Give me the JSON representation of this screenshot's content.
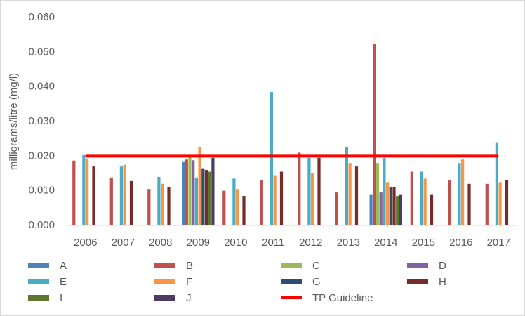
{
  "chart_data": {
    "type": "bar",
    "y_label": "milligrams/litre (mg/l)",
    "categories": [
      "2006",
      "2007",
      "2008",
      "2009",
      "2010",
      "2011",
      "2012",
      "2013",
      "2014",
      "2015",
      "2016",
      "2017"
    ],
    "ylim": [
      0,
      0.06
    ],
    "yticks": [
      {
        "value": 0,
        "label": "0.000"
      },
      {
        "value": 0.01,
        "label": "0.010"
      },
      {
        "value": 0.02,
        "label": "0.020"
      },
      {
        "value": 0.03,
        "label": "0.030"
      },
      {
        "value": 0.04,
        "label": "0.040"
      },
      {
        "value": 0.05,
        "label": "0.050"
      },
      {
        "value": 0.06,
        "label": "0.060"
      }
    ],
    "grid": false,
    "series": [
      {
        "name": "A",
        "color": "#4f81bd",
        "values": [
          null,
          null,
          null,
          0.0185,
          null,
          null,
          null,
          null,
          0.009,
          null,
          null,
          null
        ]
      },
      {
        "name": "B",
        "color": "#c0504d",
        "values": [
          0.0187,
          0.0138,
          0.0105,
          0.019,
          0.01,
          0.013,
          0.021,
          0.0095,
          0.0525,
          0.0155,
          0.013,
          0.012
        ]
      },
      {
        "name": "C",
        "color": "#9bbb59",
        "values": [
          null,
          null,
          null,
          0.0197,
          null,
          null,
          null,
          null,
          0.018,
          null,
          null,
          null
        ]
      },
      {
        "name": "D",
        "color": "#8064a2",
        "values": [
          null,
          null,
          null,
          0.0188,
          null,
          null,
          null,
          null,
          0.0095,
          null,
          null,
          null
        ]
      },
      {
        "name": "E",
        "color": "#4bacc6",
        "values": [
          0.0203,
          0.017,
          0.014,
          0.0138,
          0.0135,
          0.0385,
          0.0195,
          0.0225,
          0.0195,
          0.0155,
          0.018,
          0.024
        ]
      },
      {
        "name": "F",
        "color": "#f79646",
        "values": [
          0.0193,
          0.0175,
          0.012,
          0.0227,
          0.0105,
          0.0145,
          0.015,
          0.018,
          0.0125,
          0.0135,
          0.019,
          0.0125
        ]
      },
      {
        "name": "G",
        "color": "#2c4d75",
        "values": [
          null,
          null,
          null,
          0.0165,
          null,
          null,
          null,
          null,
          0.011,
          null,
          null,
          null
        ]
      },
      {
        "name": "H",
        "color": "#772c2a",
        "values": [
          0.017,
          0.0128,
          0.011,
          0.016,
          0.0085,
          0.0155,
          0.0195,
          0.017,
          0.011,
          0.009,
          0.012,
          0.013
        ]
      },
      {
        "name": "I",
        "color": "#5f7530",
        "values": [
          null,
          null,
          null,
          0.0155,
          null,
          null,
          null,
          null,
          0.0085,
          null,
          null,
          null
        ]
      },
      {
        "name": "J",
        "color": "#4d3b62",
        "values": [
          null,
          null,
          null,
          0.0195,
          null,
          null,
          null,
          null,
          0.009,
          null,
          null,
          null
        ]
      },
      {
        "name": "TP Guideline",
        "color": "#ff0000",
        "type": "line",
        "values": [
          0.02,
          0.02,
          0.02,
          0.02,
          0.02,
          0.02,
          0.02,
          0.02,
          0.02,
          0.02,
          0.02,
          0.02
        ]
      }
    ]
  }
}
